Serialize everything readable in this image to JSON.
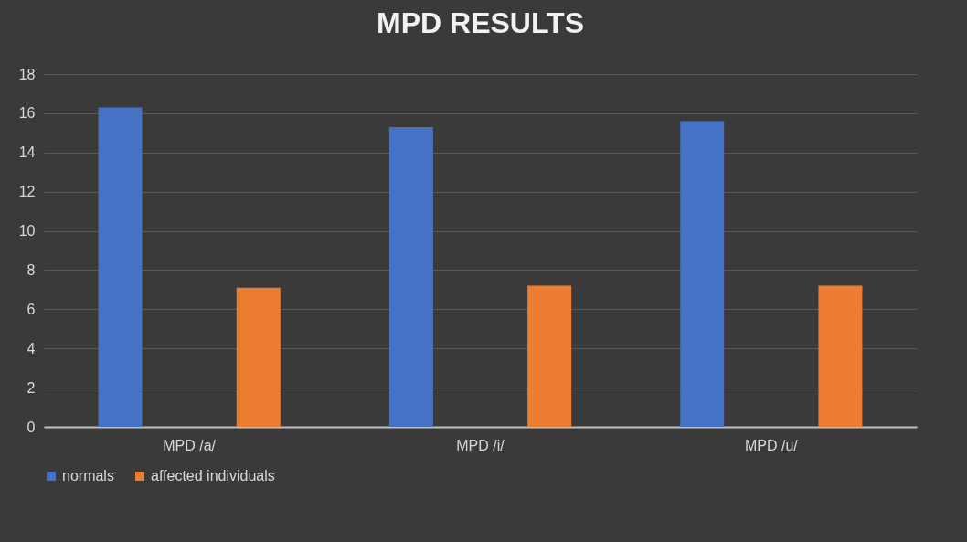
{
  "chart_data": {
    "type": "bar",
    "title": "MPD RESULTS",
    "categories": [
      "MPD /a/",
      "MPD /i/",
      "MPD /u/"
    ],
    "series": [
      {
        "name": "normals",
        "color": "#4472c4",
        "values": [
          16.3,
          15.3,
          15.6
        ]
      },
      {
        "name": "affected individuals",
        "color": "#ed7d31",
        "values": [
          7.1,
          7.2,
          7.2
        ]
      }
    ],
    "ylim": [
      0,
      18
    ],
    "yticks": [
      0,
      2,
      4,
      6,
      8,
      10,
      12,
      14,
      16,
      18
    ],
    "grid": "y",
    "legend": "bottom"
  }
}
